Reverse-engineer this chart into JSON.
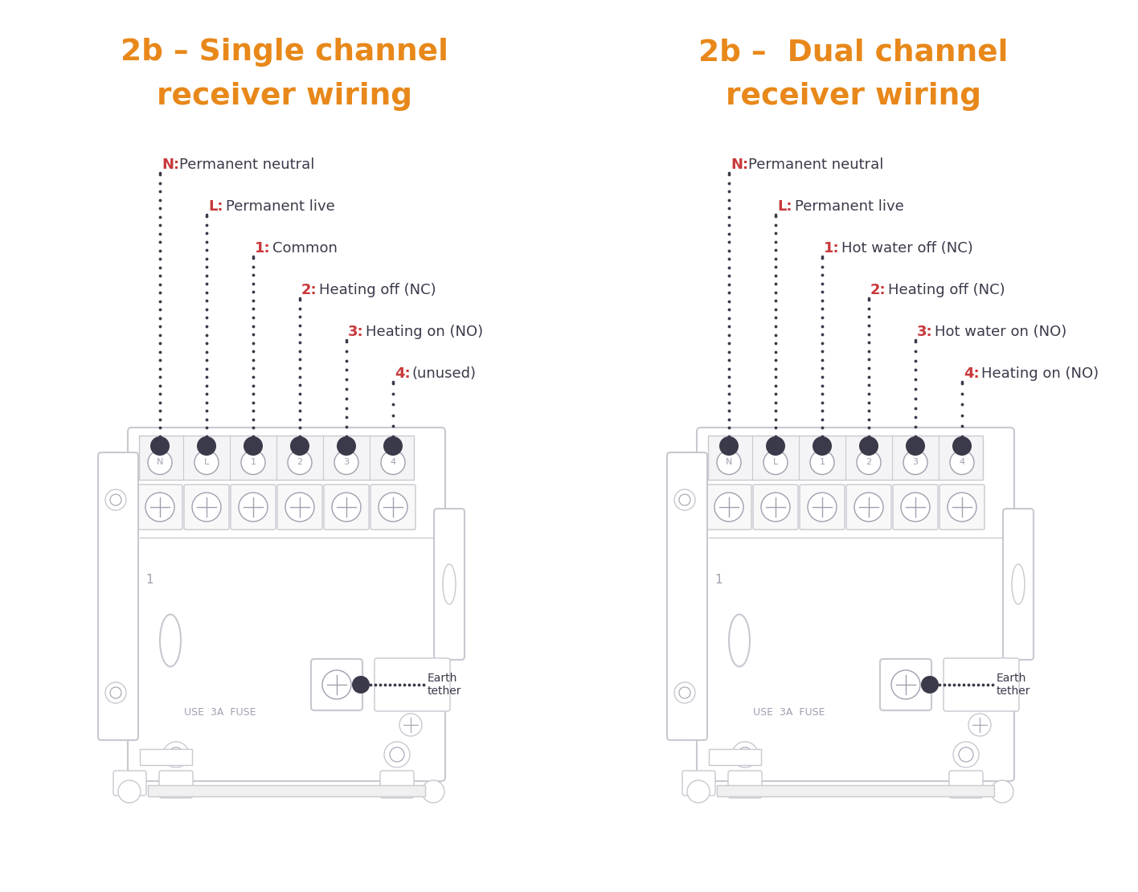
{
  "bg_color": "#ffffff",
  "orange_color": "#E8881A",
  "red_color": "#C8383A",
  "dark_gray": "#3A3A4A",
  "light_gray": "#C8C8D0",
  "mid_gray": "#A0A0B0",
  "left_title_line1": "2b – Single channel",
  "left_title_line2": "receiver wiring",
  "right_title_line1": "2b –  Dual channel",
  "right_title_line2": "receiver wiring",
  "left_labels": [
    {
      "key": "N",
      "desc": "Permanent neutral"
    },
    {
      "key": "L",
      "desc": "Permanent live"
    },
    {
      "key": "1",
      "desc": "Common"
    },
    {
      "key": "2",
      "desc": "Heating off (NC)"
    },
    {
      "key": "3",
      "desc": "Heating on (NO)"
    },
    {
      "key": "4",
      "desc": "(unused)"
    }
  ],
  "right_labels": [
    {
      "key": "N",
      "desc": "Permanent neutral"
    },
    {
      "key": "L",
      "desc": "Permanent live"
    },
    {
      "key": "1",
      "desc": "Hot water off (NC)"
    },
    {
      "key": "2",
      "desc": "Heating off (NC)"
    },
    {
      "key": "3",
      "desc": "Hot water on (NO)"
    },
    {
      "key": "4",
      "desc": "Heating on (NO)"
    }
  ],
  "earth_label": "Earth\ntether",
  "use_fuse_label": "USE  3A  FUSE",
  "number_label": "1",
  "terminal_labels": [
    "N",
    "L",
    "1",
    "2",
    "3",
    "4"
  ]
}
